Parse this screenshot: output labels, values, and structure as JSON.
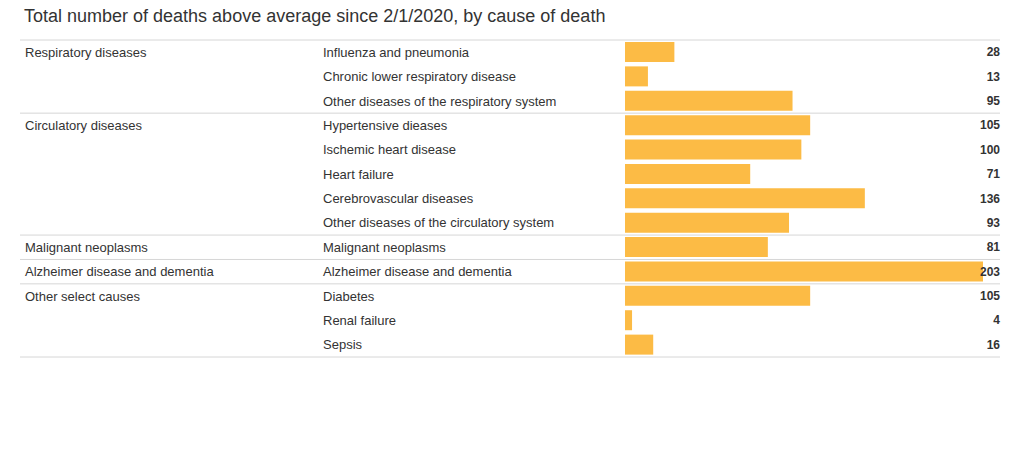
{
  "chart_data": {
    "type": "bar",
    "orientation": "horizontal",
    "title": "Total number of deaths above average since 2/1/2020, by cause of death",
    "categories": [
      "Influenza and pneumonia",
      "Chronic lower respiratory disease",
      "Other diseases of the respiratory system",
      "Hypertensive dieases",
      "Ischemic heart disease",
      "Heart failure",
      "Cerebrovascular diseases",
      "Other diseases of the circulatory system",
      "Malignant neoplasms",
      "Alzheimer disease and dementia",
      "Diabetes",
      "Renal failure",
      "Sepsis"
    ],
    "groups": [
      "Respiratory diseases",
      "Respiratory diseases",
      "Respiratory diseases",
      "Circulatory diseases",
      "Circulatory diseases",
      "Circulatory diseases",
      "Circulatory diseases",
      "Circulatory diseases",
      "Malignant neoplasms",
      "Alzheimer disease and dementia",
      "Other select causes",
      "Other select causes",
      "Other select causes"
    ],
    "values": [
      28,
      13,
      95,
      105,
      100,
      71,
      136,
      93,
      81,
      203,
      105,
      4,
      16
    ],
    "color": "#fcbb45",
    "xlim": [
      0,
      203
    ],
    "data_labels": true,
    "tick_labels": false,
    "grid": false
  }
}
